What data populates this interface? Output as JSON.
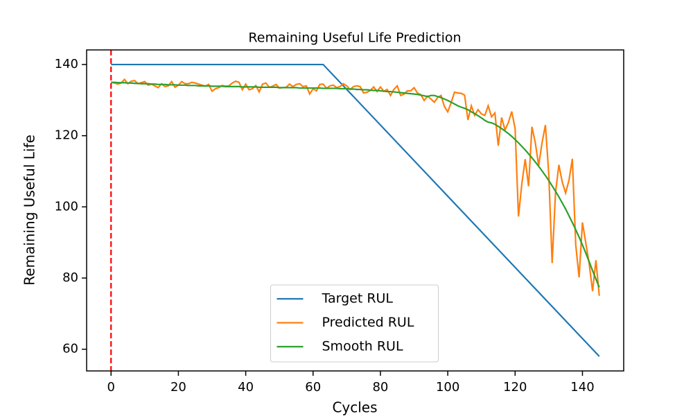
{
  "chart_data": {
    "type": "line",
    "title": "Remaining Useful Life Prediction",
    "x_label": "Cycles",
    "y_label": "Remaining Useful Life",
    "xlim": [
      -7.25,
      152.25
    ],
    "ylim": [
      53.9,
      144.1
    ],
    "xticks": [
      0,
      20,
      40,
      60,
      80,
      100,
      120,
      140
    ],
    "yticks": [
      60,
      80,
      100,
      120,
      140
    ],
    "grid": false,
    "legend": "lower center",
    "vline": {
      "value": 0,
      "color": "#ff0000",
      "style": "dashed"
    },
    "x": [
      0,
      1,
      2,
      3,
      4,
      5,
      6,
      7,
      8,
      9,
      10,
      11,
      12,
      13,
      14,
      15,
      16,
      17,
      18,
      19,
      20,
      21,
      22,
      23,
      24,
      25,
      26,
      27,
      28,
      29,
      30,
      31,
      32,
      33,
      34,
      35,
      36,
      37,
      38,
      39,
      40,
      41,
      42,
      43,
      44,
      45,
      46,
      47,
      48,
      49,
      50,
      51,
      52,
      53,
      54,
      55,
      56,
      57,
      58,
      59,
      60,
      61,
      62,
      63,
      64,
      65,
      66,
      67,
      68,
      69,
      70,
      71,
      72,
      73,
      74,
      75,
      76,
      77,
      78,
      79,
      80,
      81,
      82,
      83,
      84,
      85,
      86,
      87,
      88,
      89,
      90,
      91,
      92,
      93,
      94,
      95,
      96,
      97,
      98,
      99,
      100,
      101,
      102,
      103,
      104,
      105,
      106,
      107,
      108,
      109,
      110,
      111,
      112,
      113,
      114,
      115,
      116,
      117,
      118,
      119,
      120,
      121,
      122,
      123,
      124,
      125,
      126,
      127,
      128,
      129,
      130,
      131,
      132,
      133,
      134,
      135,
      136,
      137,
      138,
      139,
      140,
      141,
      142,
      143,
      144,
      145
    ],
    "series": [
      {
        "name": "Target RUL",
        "color": "#1f77b4",
        "x": [
          0,
          63,
          145
        ],
        "values": [
          140,
          140,
          58
        ]
      },
      {
        "name": "Predicted RUL",
        "color": "#ff7f0e",
        "values": [
          135,
          134.8,
          134.5,
          134.8,
          135.8,
          134.6,
          135.3,
          135.5,
          134.6,
          134.9,
          135.2,
          134.2,
          134.5,
          134.0,
          133.5,
          134.6,
          133.8,
          134.0,
          135.2,
          133.6,
          134.2,
          135.2,
          134.6,
          134.6,
          135.0,
          134.8,
          134.5,
          134.2,
          133.9,
          134.4,
          132.5,
          133.2,
          133.5,
          134.1,
          133.9,
          134.0,
          134.8,
          135.3,
          135.0,
          132.9,
          134.5,
          132.9,
          133.2,
          134.1,
          132.3,
          134.5,
          134.8,
          133.6,
          133.9,
          134.4,
          133.4,
          133.5,
          133.6,
          134.5,
          133.8,
          134.4,
          134.6,
          133.8,
          134.0,
          131.7,
          133.2,
          132.6,
          134.4,
          134.5,
          133.3,
          134.0,
          134.2,
          133.5,
          133.8,
          134.6,
          134.0,
          133.0,
          133.8,
          134.0,
          133.8,
          132.0,
          132.2,
          132.7,
          133.7,
          132.4,
          133.7,
          132.5,
          133.0,
          131.3,
          133.0,
          134.0,
          131.3,
          131.7,
          132.6,
          132.6,
          133.5,
          132.0,
          131.5,
          129.9,
          131.1,
          130.3,
          129.4,
          130.7,
          131.3,
          128.2,
          126.7,
          129.3,
          132.2,
          132.0,
          131.9,
          131.4,
          124.4,
          128.4,
          125.7,
          127.3,
          126.1,
          125.7,
          128.4,
          125.3,
          126.4,
          117.2,
          125.1,
          121.6,
          123.7,
          126.8,
          122.0,
          97.3,
          106.5,
          113.4,
          105.8,
          122.5,
          118.0,
          111.6,
          118.0,
          123.0,
          109.2,
          84.2,
          104.0,
          111.8,
          107.0,
          103.9,
          107.5,
          113.5,
          89.4,
          80.2,
          95.6,
          89.8,
          84.0,
          76.3,
          85.0,
          75.0
        ]
      },
      {
        "name": "Smooth RUL",
        "color": "#2ca02c",
        "values": [
          135.0,
          135.0,
          134.9,
          134.9,
          134.9,
          134.8,
          134.8,
          134.7,
          134.7,
          134.6,
          134.6,
          134.6,
          134.5,
          134.5,
          134.4,
          134.4,
          134.4,
          134.3,
          134.3,
          134.3,
          134.2,
          134.2,
          134.2,
          134.1,
          134.1,
          134.1,
          134.0,
          134.0,
          134.0,
          134.0,
          133.9,
          133.9,
          133.9,
          133.9,
          133.8,
          133.8,
          133.8,
          133.8,
          133.8,
          133.7,
          133.7,
          133.7,
          133.7,
          133.7,
          133.6,
          133.6,
          133.6,
          133.6,
          133.6,
          133.6,
          133.5,
          133.5,
          133.5,
          133.5,
          133.5,
          133.5,
          133.4,
          133.4,
          133.4,
          133.4,
          133.4,
          133.4,
          133.4,
          133.3,
          133.3,
          133.3,
          133.3,
          133.3,
          133.2,
          133.2,
          133.2,
          133.1,
          133.1,
          133.0,
          133.0,
          132.9,
          132.9,
          132.8,
          132.7,
          132.7,
          132.6,
          132.5,
          132.4,
          132.4,
          132.3,
          132.2,
          132.1,
          132.0,
          131.9,
          131.8,
          131.7,
          131.6,
          131.4,
          131.2,
          131.0,
          131.3,
          131.3,
          131.0,
          130.7,
          130.3,
          129.9,
          129.4,
          128.9,
          128.4,
          128.0,
          127.7,
          127.3,
          126.7,
          126.2,
          125.6,
          125.0,
          124.3,
          123.8,
          123.6,
          123.2,
          122.6,
          122.0,
          121.3,
          120.6,
          119.8,
          118.9,
          118.0,
          117.0,
          116.0,
          114.9,
          113.8,
          112.6,
          111.4,
          110.1,
          108.8,
          107.4,
          105.9,
          104.4,
          102.8,
          101.1,
          99.4,
          97.5,
          95.6,
          93.6,
          91.5,
          89.3,
          87.0,
          84.6,
          82.1,
          79.7,
          77.4
        ]
      }
    ]
  }
}
